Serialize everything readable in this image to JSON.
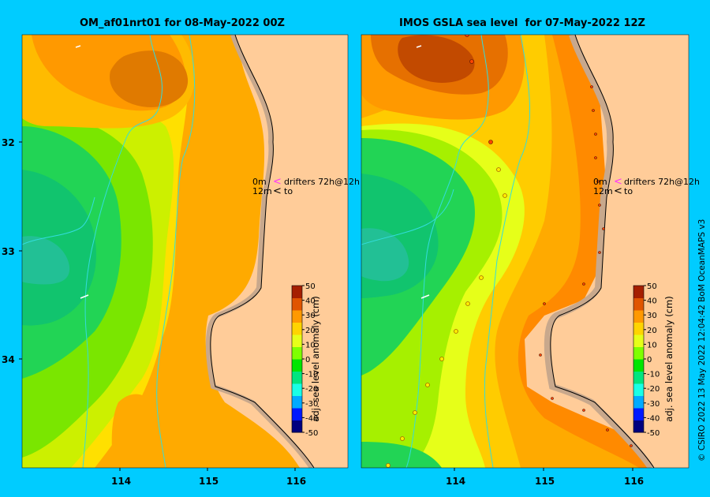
{
  "panels": [
    {
      "title": "OM_af01nrt01 for 08-May-2022 00Z"
    },
    {
      "title": "IMOS GSLA sea level  for 07-May-2022 12Z"
    }
  ],
  "axes": {
    "x_ticks": [
      "114",
      "115",
      "116"
    ],
    "y_ticks": [
      "32",
      "33",
      "34"
    ]
  },
  "legend": {
    "row1_depth": "0m",
    "row1_label": "drifters 72h@12h",
    "row2_depth": "12m",
    "row2_label": "to",
    "drifter_color": "#ff33ff"
  },
  "colorbar": {
    "label": "adj. sea level anomaly (cm)",
    "ticks": [
      "50",
      "40",
      "30",
      "20",
      "10",
      "0",
      "-10",
      "-20",
      "-30",
      "-40",
      "-50"
    ],
    "colors": [
      "#00007f",
      "#0019ff",
      "#00aaff",
      "#19ffe6",
      "#00e57f",
      "#00e500",
      "#7fff00",
      "#e6ff19",
      "#ffd400",
      "#ff9900",
      "#e05500",
      "#a51f00"
    ]
  },
  "credit": "© CSIRO 2022   13 May 2022 12:04:42 BoM OceanMAPS v3",
  "colors": {
    "background": "#00ccff",
    "land": "#ffcc99",
    "coast": "#c8a88c",
    "bathy": "#33dddd"
  }
}
